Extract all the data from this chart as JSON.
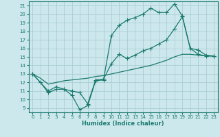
{
  "xlabel": "Humidex (Indice chaleur)",
  "xlim": [
    -0.5,
    23.5
  ],
  "ylim": [
    8.5,
    21.5
  ],
  "xticks": [
    0,
    1,
    2,
    3,
    4,
    5,
    6,
    7,
    8,
    9,
    10,
    11,
    12,
    13,
    14,
    15,
    16,
    17,
    18,
    19,
    20,
    21,
    22,
    23
  ],
  "yticks": [
    9,
    10,
    11,
    12,
    13,
    14,
    15,
    16,
    17,
    18,
    19,
    20,
    21
  ],
  "bg_color": "#cde8ed",
  "grid_color": "#aacdd5",
  "line_color": "#1a7a6e",
  "line1_x": [
    0,
    1,
    2,
    3,
    4,
    5,
    6,
    7,
    8,
    9,
    10,
    11,
    12,
    13,
    14,
    15,
    16,
    17,
    18,
    19,
    20,
    21,
    22,
    23
  ],
  "line1_y": [
    13.0,
    12.0,
    10.8,
    11.2,
    11.2,
    10.5,
    8.8,
    9.3,
    12.2,
    12.3,
    17.5,
    18.7,
    19.3,
    19.6,
    20.0,
    20.7,
    20.2,
    20.2,
    21.2,
    19.8,
    16.0,
    15.3,
    15.1,
    15.1
  ],
  "line2_x": [
    0,
    2,
    3,
    4,
    5,
    6,
    7,
    8,
    9,
    10,
    11,
    12,
    13,
    14,
    15,
    16,
    17,
    18,
    19,
    20,
    21,
    22,
    23
  ],
  "line2_y": [
    13.0,
    11.0,
    11.5,
    11.2,
    11.0,
    10.8,
    9.5,
    12.3,
    12.4,
    14.2,
    15.3,
    14.8,
    15.2,
    15.7,
    16.0,
    16.5,
    17.0,
    18.3,
    19.7,
    16.0,
    15.8,
    15.2,
    15.1
  ],
  "line3_x": [
    0,
    1,
    2,
    3,
    4,
    5,
    6,
    7,
    8,
    9,
    10,
    11,
    12,
    13,
    14,
    15,
    16,
    17,
    18,
    19,
    20,
    21,
    22,
    23
  ],
  "line3_y": [
    13.0,
    12.5,
    11.8,
    12.0,
    12.2,
    12.3,
    12.4,
    12.5,
    12.7,
    12.8,
    13.0,
    13.2,
    13.4,
    13.6,
    13.8,
    14.0,
    14.3,
    14.6,
    15.0,
    15.3,
    15.3,
    15.2,
    15.1,
    15.1
  ]
}
